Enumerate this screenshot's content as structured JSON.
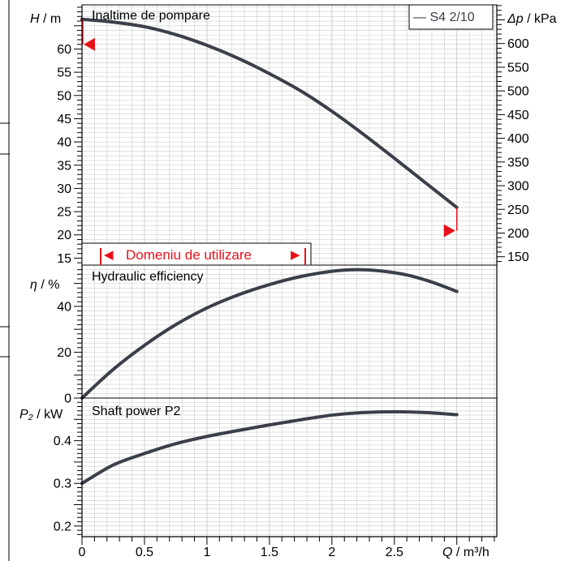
{
  "colors": {
    "curve": "#3a3f4a",
    "grid": "#cccccc",
    "marker": "#e8101a",
    "frame": "#000000"
  },
  "chart_data": [
    {
      "type": "line",
      "panel": "head",
      "title": "Inaltime de pompare",
      "ylabel_symbol": "H",
      "ylabel_unit": " / m",
      "right_axis_label_symbol": "Δp",
      "right_axis_label_unit": " / kPa",
      "ylim": [
        13.5,
        69.5
      ],
      "yticks": [
        "15",
        "20",
        "25",
        "30",
        "35",
        "40",
        "45",
        "50",
        "55",
        "60"
      ],
      "right_ticks": [
        "150",
        "200",
        "250",
        "300",
        "350",
        "400",
        "450",
        "500",
        "550",
        "600"
      ],
      "legend": "— S4 2/10",
      "legend_position": "top-right",
      "range_label": "Domeniu de utilizare",
      "range_marks": {
        "left_arrow": "◀",
        "right_arrow": "▶"
      },
      "series": [
        {
          "name": "S4 2/10",
          "x": [
            0,
            0.25,
            0.5,
            0.75,
            1.0,
            1.25,
            1.5,
            1.75,
            2.0,
            2.25,
            2.5,
            2.75,
            3.0
          ],
          "y": [
            66.4,
            65.8,
            64.8,
            63.1,
            60.8,
            58.0,
            54.7,
            51.0,
            46.6,
            41.7,
            36.5,
            31.2,
            25.9
          ]
        }
      ],
      "operating_range_markers": [
        {
          "x": 0,
          "y": 61.0,
          "direction": "left"
        },
        {
          "x": 3.0,
          "y": 20.9,
          "direction": "right"
        }
      ]
    },
    {
      "type": "line",
      "panel": "efficiency",
      "title": "Hydraulic efficiency",
      "ylabel_symbol": "η",
      "ylabel_unit": " / %",
      "ylim": [
        0,
        58
      ],
      "yticks": [
        "0",
        "20",
        "40"
      ],
      "series": [
        {
          "name": "Hydraulic efficiency",
          "x": [
            0,
            0.25,
            0.5,
            0.75,
            1.0,
            1.25,
            1.5,
            1.75,
            2.0,
            2.2,
            2.4,
            2.6,
            2.8,
            3.0
          ],
          "y": [
            0,
            12.5,
            23,
            32,
            39.3,
            45,
            49.5,
            53,
            55.3,
            56,
            55.4,
            53.7,
            50.6,
            46.5
          ]
        }
      ]
    },
    {
      "type": "line",
      "panel": "power",
      "title": "Shaft power P2",
      "ylabel_symbol": "P₂",
      "ylabel_unit": " / kW",
      "ylim": [
        0.175,
        0.5
      ],
      "yticks": [
        "0.2",
        "0.3",
        "0.4"
      ],
      "xlabel_symbol": "Q",
      "xlabel_unit": " / m³/h",
      "xlim": [
        0,
        3.32
      ],
      "xticks": [
        "0",
        "0.5",
        "1",
        "1.5",
        "2",
        "2.5"
      ],
      "series": [
        {
          "name": "Shaft power P2",
          "x": [
            0,
            0.25,
            0.5,
            0.75,
            1.0,
            1.25,
            1.5,
            1.75,
            2.0,
            2.25,
            2.5,
            2.75,
            3.0
          ],
          "y": [
            0.3,
            0.343,
            0.37,
            0.393,
            0.41,
            0.424,
            0.437,
            0.449,
            0.46,
            0.466,
            0.468,
            0.466,
            0.461
          ]
        }
      ]
    }
  ]
}
